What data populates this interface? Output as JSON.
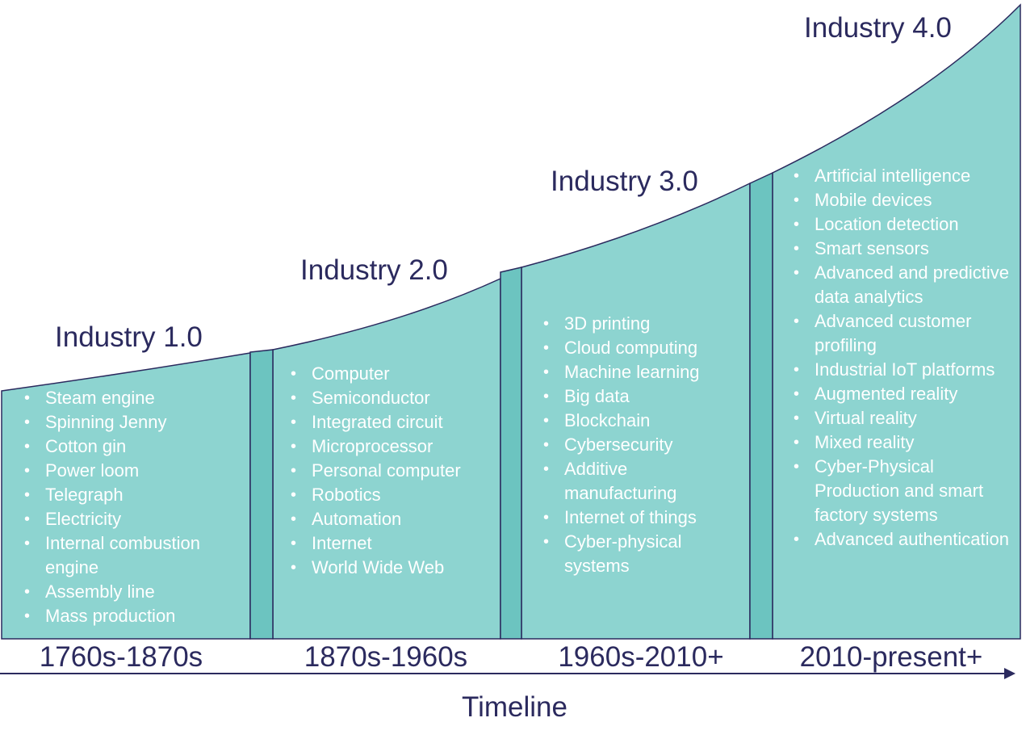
{
  "colors": {
    "panel_fill": "#8dd4d0",
    "panel_stroke": "#2b2a5e",
    "connector_fill": "#6cc4c0",
    "title_text": "#2b2a5e",
    "bullet_text": "#ffffff"
  },
  "eras": [
    {
      "title": "Industry 1.0",
      "period": "1760s-1870s",
      "items": [
        "Steam engine",
        "Spinning Jenny",
        "Cotton gin",
        "Power loom",
        "Telegraph",
        "Electricity",
        "Internal combustion engine",
        "Assembly line",
        "Mass production"
      ]
    },
    {
      "title": "Industry 2.0",
      "period": "1870s-1960s",
      "items": [
        "Computer",
        "Semiconductor",
        "Integrated circuit",
        "Microprocessor",
        "Personal computer",
        "Robotics",
        "Automation",
        "Internet",
        "World Wide Web"
      ]
    },
    {
      "title": "Industry 3.0",
      "period": "1960s-2010+",
      "items": [
        "3D printing",
        "Cloud computing",
        "Machine learning",
        "Big data",
        "Blockchain",
        "Cybersecurity",
        "Additive manufacturing",
        "Internet of things",
        "Cyber-physical systems"
      ]
    },
    {
      "title": "Industry 4.0",
      "period": "2010-present+",
      "items": [
        "Artificial intelligence",
        "Mobile devices",
        "Location detection",
        "Smart sensors",
        "Advanced and predictive data analytics",
        "Advanced customer profiling",
        "Industrial IoT platforms",
        "Augmented reality",
        "Virtual reality",
        "Mixed reality",
        "Cyber-Physical Production and smart factory systems",
        "Advanced authentication"
      ]
    }
  ],
  "timeline": {
    "label": "Timeline"
  }
}
